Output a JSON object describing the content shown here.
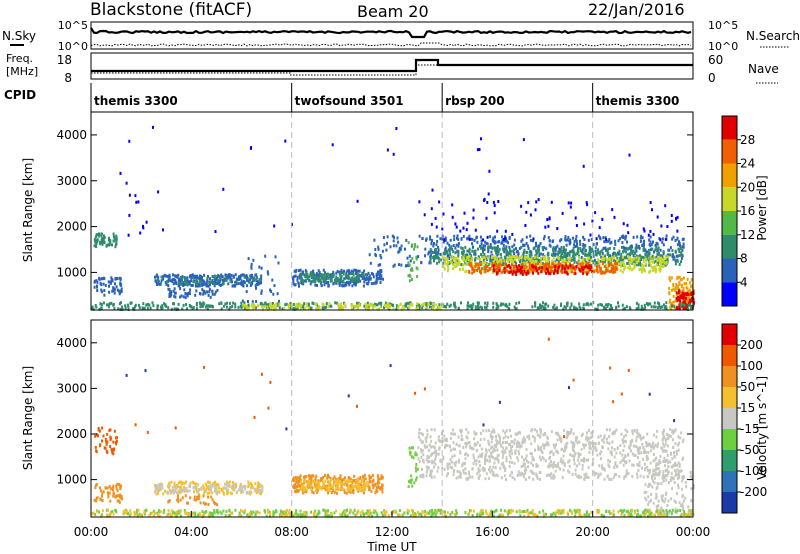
{
  "header": {
    "title": "Blackstone (fitACF)",
    "beam": "Beam 20",
    "date": "22/Jan/2016"
  },
  "summary_panels": {
    "nsky_label": "N.Sky",
    "nsky_ticks": [
      "10^5",
      "10^0"
    ],
    "nsearch_label": "N.Search",
    "nsearch_ticks": [
      "10^5",
      "10^0"
    ],
    "freq_label_line1": "Freq.",
    "freq_label_line2": "[MHz]",
    "freq_ticks": [
      "18",
      "8"
    ],
    "nave_label": "Nave",
    "nave_ticks": [
      "60",
      "0"
    ],
    "cpid_label": "CPID",
    "cpid_segments": [
      {
        "label": "themis 3300",
        "start_hour": 0
      },
      {
        "label": "twofsound 3501",
        "start_hour": 8
      },
      {
        "label": "rbsp 200",
        "start_hour": 14
      },
      {
        "label": "themis 3300",
        "start_hour": 20
      }
    ]
  },
  "chart_data": [
    {
      "type": "heatmap",
      "name": "power-panel",
      "ylabel": "Slant Range [km]",
      "ylim": [
        180,
        4500
      ],
      "yticks": [
        "1000",
        "2000",
        "3000",
        "4000"
      ],
      "xlim_hours": [
        0,
        24
      ],
      "colorbar_label": "Power [dB]",
      "colorbar_ticks": [
        "4",
        "8",
        "12",
        "16",
        "20",
        "24",
        "28"
      ],
      "colorbar_colors": [
        "#0000ff",
        "#2a62b8",
        "#2f8c6a",
        "#52b848",
        "#c8d828",
        "#f0a000",
        "#f06000",
        "#e00000"
      ],
      "regions": [
        {
          "t0": 0.1,
          "t1": 1.0,
          "r0": 1550,
          "r1": 1850,
          "level": 2,
          "n": 60
        },
        {
          "t0": 0.1,
          "t1": 1.2,
          "r0": 500,
          "r1": 900,
          "level": 1,
          "n": 60
        },
        {
          "t0": 1.0,
          "t1": 3.0,
          "r0": 1800,
          "r1": 3300,
          "level": 0,
          "n": 12
        },
        {
          "t0": 2.5,
          "t1": 6.8,
          "r0": 700,
          "r1": 950,
          "level": 1,
          "n": 260
        },
        {
          "t0": 2.5,
          "t1": 6.8,
          "r0": 750,
          "r1": 900,
          "level": 2,
          "n": 40
        },
        {
          "t0": 3.0,
          "t1": 5.0,
          "r0": 450,
          "r1": 650,
          "level": 1,
          "n": 50
        },
        {
          "t0": 6.0,
          "t1": 7.5,
          "r0": 200,
          "r1": 1400,
          "level": 1,
          "n": 30
        },
        {
          "t0": 8.0,
          "t1": 11.6,
          "r0": 700,
          "r1": 1050,
          "level": 1,
          "n": 240
        },
        {
          "t0": 8.3,
          "t1": 11.0,
          "r0": 780,
          "r1": 980,
          "level": 2,
          "n": 100
        },
        {
          "t0": 11.0,
          "t1": 12.8,
          "r0": 1100,
          "r1": 1800,
          "level": 1,
          "n": 45
        },
        {
          "t0": 12.6,
          "t1": 13.0,
          "r0": 800,
          "r1": 1700,
          "level": 3,
          "n": 25
        },
        {
          "t0": 13.0,
          "t1": 23.6,
          "r0": 1200,
          "r1": 1800,
          "level": 1,
          "n": 500
        },
        {
          "t0": 13.5,
          "t1": 23.5,
          "r0": 1150,
          "r1": 1550,
          "level": 2,
          "n": 450
        },
        {
          "t0": 14.0,
          "t1": 23.0,
          "r0": 1000,
          "r1": 1350,
          "level": 4,
          "n": 420
        },
        {
          "t0": 15.0,
          "t1": 21.0,
          "r0": 980,
          "r1": 1200,
          "level": 6,
          "n": 250
        },
        {
          "t0": 16.0,
          "t1": 20.0,
          "r0": 950,
          "r1": 1150,
          "level": 7,
          "n": 90
        },
        {
          "t0": 13.0,
          "t1": 23.5,
          "r0": 1700,
          "r1": 2600,
          "level": 0,
          "n": 90
        },
        {
          "t0": 23.0,
          "t1": 24.0,
          "r0": 200,
          "r1": 900,
          "level": 5,
          "n": 110
        },
        {
          "t0": 23.3,
          "t1": 24.0,
          "r0": 200,
          "r1": 600,
          "level": 7,
          "n": 80
        },
        {
          "t0": 0.0,
          "t1": 24.0,
          "r0": 190,
          "r1": 340,
          "level": 2,
          "n": 450
        },
        {
          "t0": 6.0,
          "t1": 14.0,
          "r0": 190,
          "r1": 320,
          "level": 4,
          "n": 140
        },
        {
          "t0": 0.0,
          "t1": 24.0,
          "r0": 1800,
          "r1": 4200,
          "level": 0,
          "n": 30
        }
      ]
    },
    {
      "type": "heatmap",
      "name": "velocity-panel",
      "ylabel": "Slant Range [km]",
      "xlabel": "Time UT",
      "ylim": [
        180,
        4500
      ],
      "yticks": [
        "1000",
        "2000",
        "3000",
        "4000"
      ],
      "xlim_hours": [
        0,
        24
      ],
      "xticks": [
        "00:00",
        "04:00",
        "08:00",
        "12:00",
        "16:00",
        "20:00",
        "00:00"
      ],
      "colorbar_label": "Velocity [m s^-1]",
      "colorbar_ticks": [
        "200",
        "100",
        "50",
        "15",
        "-15",
        "-50",
        "-100",
        "-200"
      ],
      "colorbar_colors": [
        "#1a3aa8",
        "#2f72b8",
        "#2f9e6a",
        "#6ed040",
        "#c8c8c0",
        "#f5c030",
        "#f09020",
        "#f05800",
        "#e00000"
      ],
      "regions": [
        {
          "t0": 0.1,
          "t1": 1.0,
          "r0": 1550,
          "r1": 2150,
          "level": 7,
          "n": 45
        },
        {
          "t0": 0.1,
          "t1": 1.2,
          "r0": 500,
          "r1": 900,
          "level": 6,
          "n": 55
        },
        {
          "t0": 2.5,
          "t1": 6.8,
          "r0": 680,
          "r1": 950,
          "level": 5,
          "n": 180
        },
        {
          "t0": 2.5,
          "t1": 6.8,
          "r0": 700,
          "r1": 900,
          "level": 4,
          "n": 100
        },
        {
          "t0": 3.0,
          "t1": 5.0,
          "r0": 450,
          "r1": 650,
          "level": 6,
          "n": 35
        },
        {
          "t0": 8.0,
          "t1": 11.6,
          "r0": 700,
          "r1": 1100,
          "level": 6,
          "n": 260
        },
        {
          "t0": 8.3,
          "t1": 11.0,
          "r0": 750,
          "r1": 1000,
          "level": 5,
          "n": 120
        },
        {
          "t0": 12.6,
          "t1": 13.0,
          "r0": 800,
          "r1": 1700,
          "level": 3,
          "n": 25
        },
        {
          "t0": 13.0,
          "t1": 23.6,
          "r0": 1000,
          "r1": 2100,
          "level": 4,
          "n": 1000
        },
        {
          "t0": 22.0,
          "t1": 24.0,
          "r0": 200,
          "r1": 1200,
          "level": 4,
          "n": 140
        },
        {
          "t0": 0.0,
          "t1": 24.0,
          "r0": 190,
          "r1": 330,
          "level": 3,
          "n": 400
        },
        {
          "t0": 0.0,
          "t1": 24.0,
          "r0": 190,
          "r1": 330,
          "level": 5,
          "n": 200
        },
        {
          "t0": 0.0,
          "t1": 24.0,
          "r0": 1800,
          "r1": 4200,
          "level": 7,
          "n": 18
        },
        {
          "t0": 0.0,
          "t1": 24.0,
          "r0": 1800,
          "r1": 4200,
          "level": 0,
          "n": 10
        }
      ]
    }
  ]
}
